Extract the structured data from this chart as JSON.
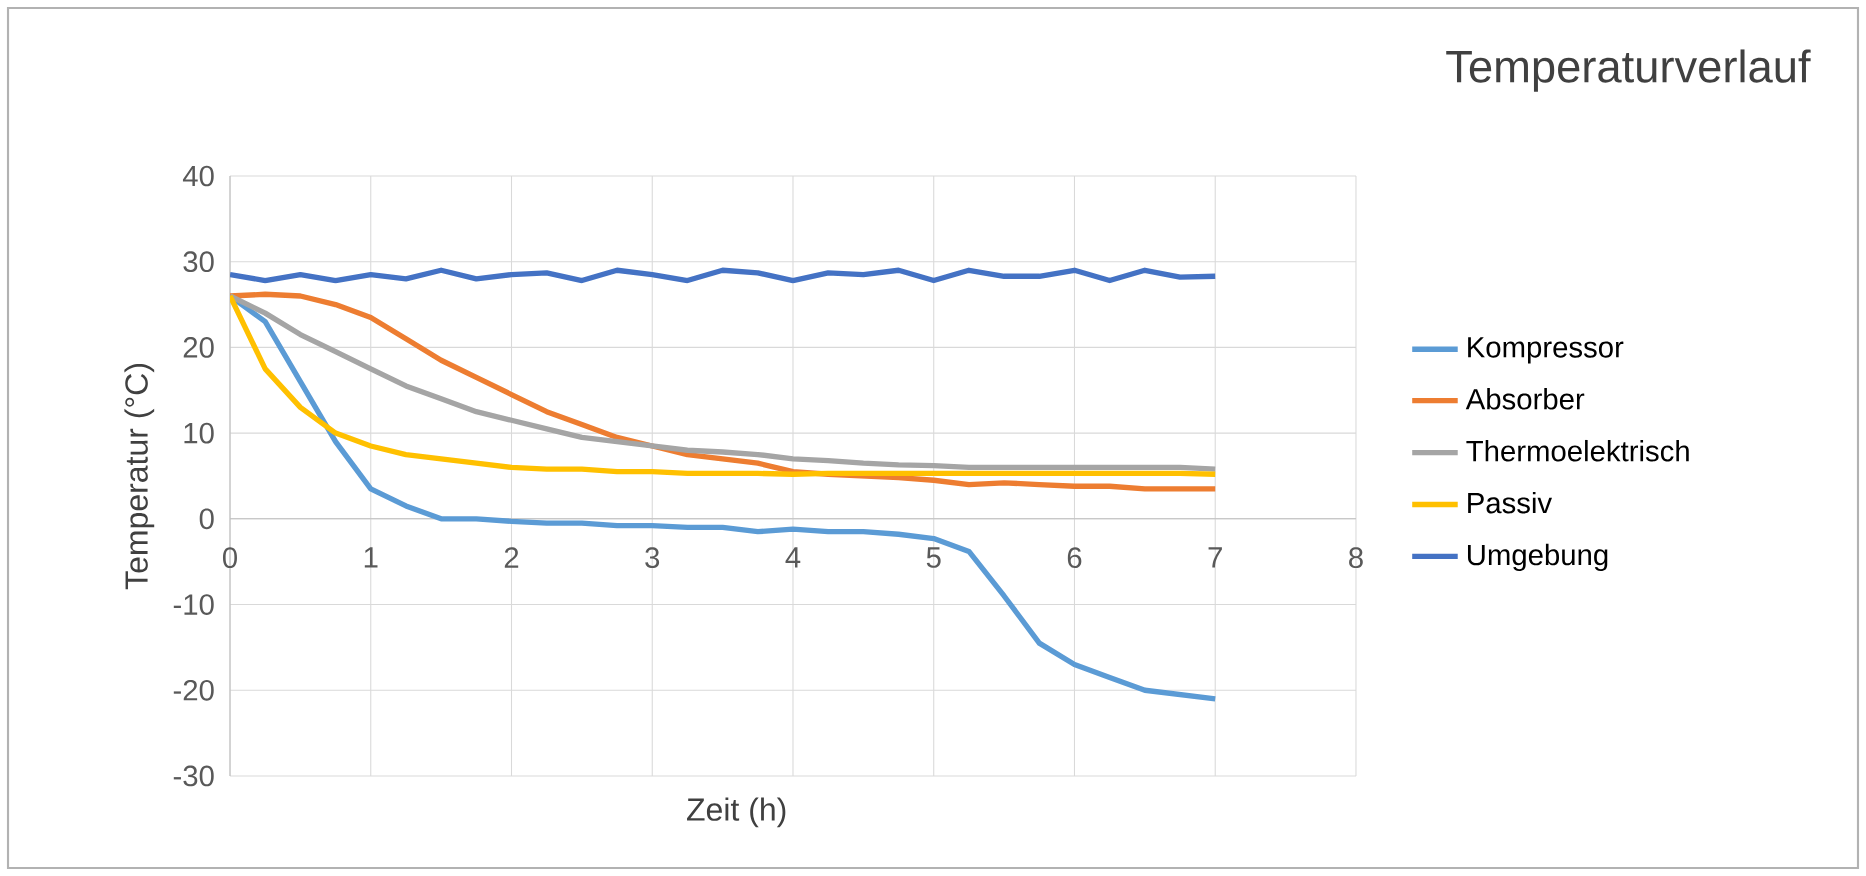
{
  "chart_data": {
    "type": "line",
    "title": "Temperaturverlauf",
    "xlabel": "Zeit (h)",
    "ylabel": "Temperatur (°C)",
    "x": [
      0,
      0.25,
      0.5,
      0.75,
      1,
      1.25,
      1.5,
      1.75,
      2,
      2.25,
      2.5,
      2.75,
      3,
      3.25,
      3.5,
      3.75,
      4,
      4.25,
      4.5,
      4.75,
      5,
      5.25,
      5.5,
      5.75,
      6,
      6.25,
      6.5,
      6.75,
      7
    ],
    "xlim": [
      0,
      8
    ],
    "xticks": [
      0,
      1,
      2,
      3,
      4,
      5,
      6,
      7,
      8
    ],
    "ylim": [
      -30,
      40
    ],
    "yticks": [
      -30,
      -20,
      -10,
      0,
      10,
      20,
      30,
      40
    ],
    "grid": true,
    "legend": "right",
    "marker": "none",
    "series": [
      {
        "name": "Kompressor",
        "color": "#5b9bd5",
        "values": [
          26,
          23,
          16,
          9,
          3.5,
          1.5,
          0,
          0,
          -0.3,
          -0.5,
          -0.5,
          -0.8,
          -0.8,
          -1,
          -1,
          -1.5,
          -1.2,
          -1.5,
          -1.5,
          -1.8,
          -2.3,
          -3.8,
          -9,
          -14.5,
          -17,
          -18.5,
          -20,
          -20.5,
          -21
        ]
      },
      {
        "name": "Absorber",
        "color": "#ed7d31",
        "values": [
          26,
          26.2,
          26,
          25,
          23.5,
          21,
          18.5,
          16.5,
          14.5,
          12.5,
          11,
          9.5,
          8.5,
          7.5,
          7,
          6.5,
          5.5,
          5.2,
          5,
          4.8,
          4.5,
          4,
          4.2,
          4,
          3.8,
          3.8,
          3.5,
          3.5,
          3.5
        ]
      },
      {
        "name": "Thermoelektrisch",
        "color": "#a5a5a5",
        "values": [
          26,
          24,
          21.5,
          19.5,
          17.5,
          15.5,
          14,
          12.5,
          11.5,
          10.5,
          9.5,
          9,
          8.5,
          8,
          7.8,
          7.5,
          7,
          6.8,
          6.5,
          6.3,
          6.2,
          6,
          6,
          6,
          6,
          6,
          6,
          6,
          5.8
        ]
      },
      {
        "name": "Passiv",
        "color": "#ffc000",
        "values": [
          26,
          17.5,
          13,
          10,
          8.5,
          7.5,
          7,
          6.5,
          6,
          5.8,
          5.8,
          5.5,
          5.5,
          5.3,
          5.3,
          5.3,
          5.2,
          5.3,
          5.3,
          5.3,
          5.3,
          5.3,
          5.3,
          5.3,
          5.3,
          5.3,
          5.3,
          5.3,
          5.2
        ]
      },
      {
        "name": "Umgebung",
        "color": "#4472c4",
        "values": [
          28.5,
          27.8,
          28.5,
          27.8,
          28.5,
          28,
          29,
          28,
          28.5,
          28.7,
          27.8,
          29,
          28.5,
          27.8,
          29,
          28.7,
          27.8,
          28.7,
          28.5,
          29,
          27.8,
          29,
          28.3,
          28.3,
          29,
          27.8,
          29,
          28.2,
          28.3
        ]
      }
    ]
  }
}
